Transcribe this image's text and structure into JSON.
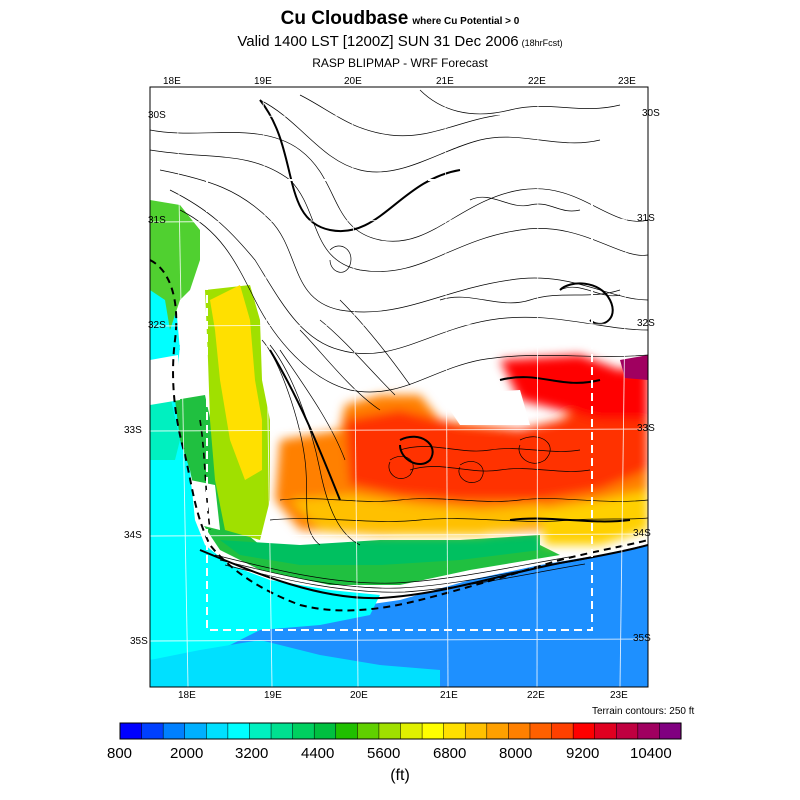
{
  "header": {
    "title": "Cu Cloudbase",
    "subtitle": "where Cu Potential > 0",
    "valid": "Valid 1400 LST [1200Z] SUN 31 Dec 2006",
    "fcst": "(18hrFcst)",
    "model": "RASP BLIPMAP - WRF Forecast"
  },
  "map": {
    "top_lon_labels": [
      "18E",
      "19E",
      "20E",
      "21E",
      "22E",
      "23E"
    ],
    "bottom_lon_labels": [
      "18E",
      "19E",
      "20E",
      "21E",
      "22E",
      "23E"
    ],
    "left_lat_labels": [
      "30S",
      "31S",
      "32S",
      "33S",
      "34S",
      "35S"
    ],
    "right_lat_labels": [
      "30S",
      "31S",
      "32S",
      "33S",
      "34S",
      "35S"
    ],
    "terrain_note": "Terrain contours: 250 ft"
  },
  "colorbar": {
    "tick_labels": [
      "800",
      "2000",
      "3200",
      "4400",
      "5600",
      "6800",
      "8000",
      "9200",
      "10400"
    ],
    "units": "(ft)",
    "colors": [
      "#0000ff",
      "#0040ff",
      "#0080ff",
      "#00b0ff",
      "#00e0ff",
      "#00ffff",
      "#00f0c0",
      "#00e090",
      "#00d060",
      "#00c040",
      "#20c000",
      "#60d000",
      "#a0e000",
      "#e0f000",
      "#ffff00",
      "#ffe000",
      "#ffc000",
      "#ffa000",
      "#ff8000",
      "#ff6000",
      "#ff4000",
      "#ff0000",
      "#e00020",
      "#c00040",
      "#a00060",
      "#800080"
    ]
  }
}
